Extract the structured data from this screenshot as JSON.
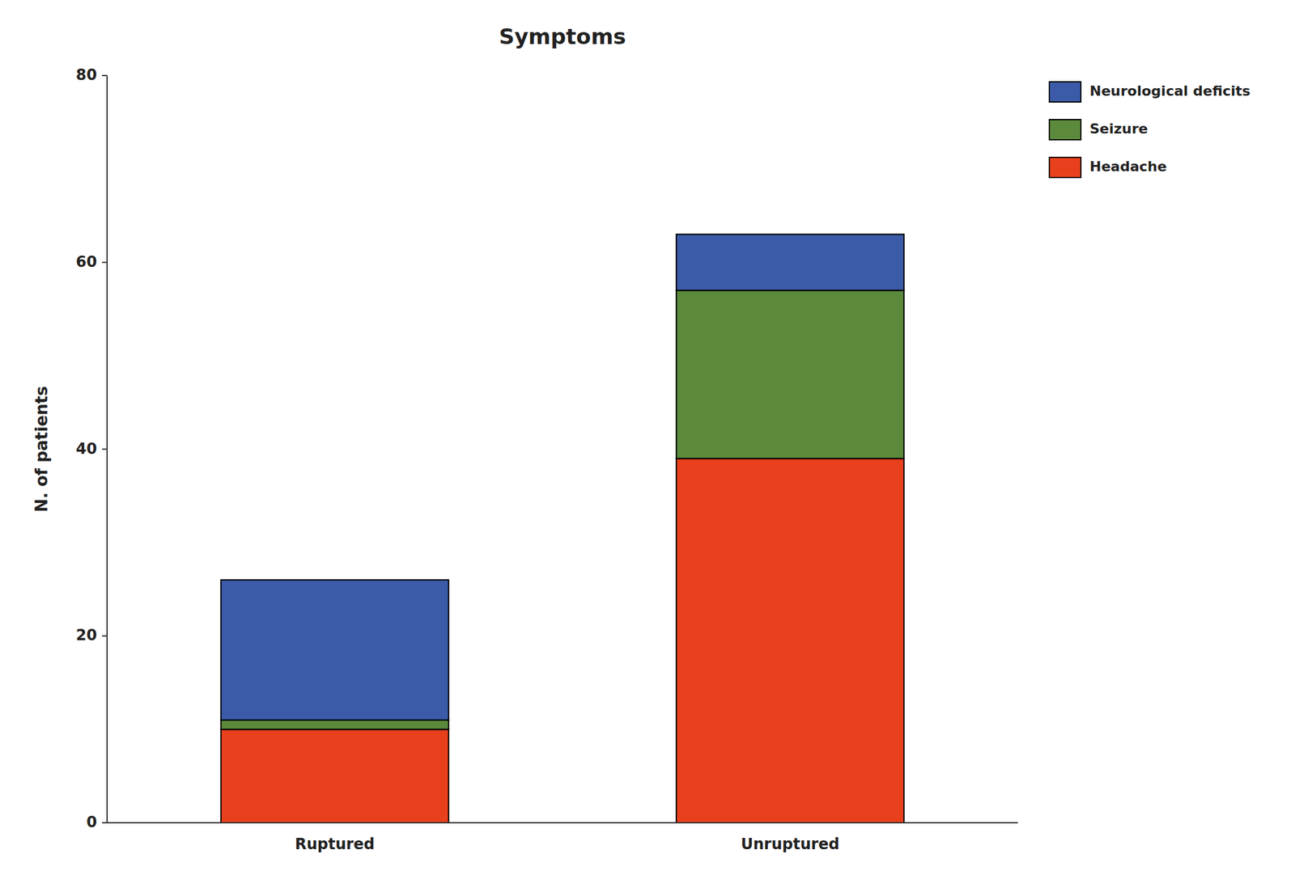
{
  "chart_data": {
    "type": "bar",
    "stacked": true,
    "title": "Symptoms",
    "categories": [
      "Ruptured",
      "Unruptured"
    ],
    "series": [
      {
        "name": "Headache",
        "color": "#E8401C",
        "values": [
          10,
          39
        ]
      },
      {
        "name": "Seizure",
        "color": "#5C8A3C",
        "values": [
          1,
          18
        ]
      },
      {
        "name": "Neurological deficits",
        "color": "#3B5BA8",
        "values": [
          15,
          6
        ]
      }
    ],
    "ylabel": "N. of patients",
    "ylim": [
      0,
      80
    ],
    "yticks": [
      0,
      20,
      40,
      60,
      80
    ],
    "grid": false,
    "legend": "upper right"
  }
}
